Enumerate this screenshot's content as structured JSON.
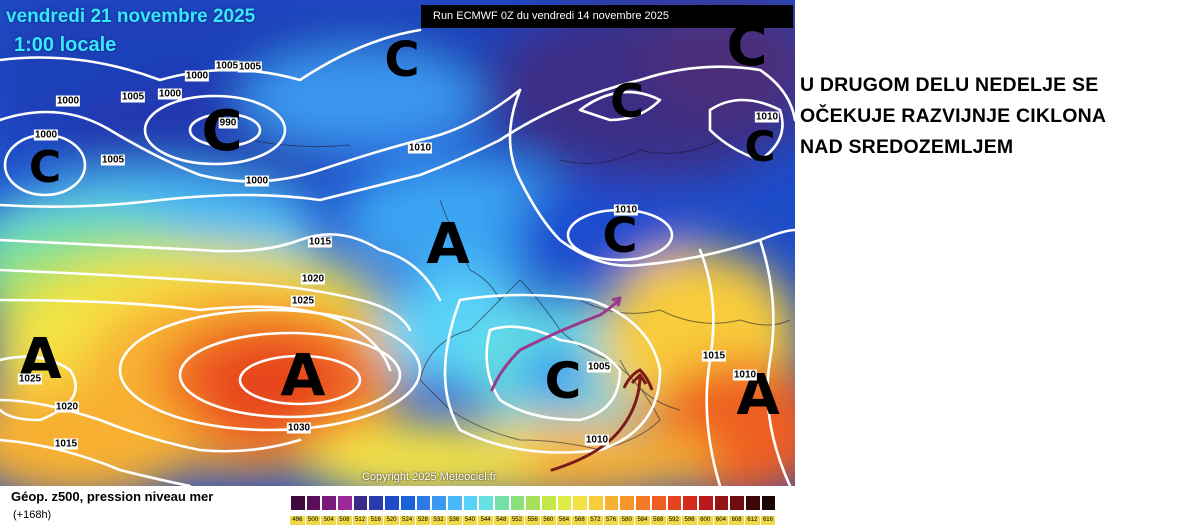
{
  "map": {
    "date_line": "vendredi 21 novembre 2025",
    "time_line": "1:00 locale",
    "run_info": "Run ECMWF 0Z du vendredi 14 novembre 2025",
    "copyright": "Copyright 2025 Meteociel.fr",
    "high_symbol": "A",
    "low_symbol": "C",
    "isobar_labels": [
      "1000",
      "1005",
      "1000",
      "1005",
      "1000",
      "1000",
      "1005",
      "990",
      "1005",
      "1000",
      "1010",
      "1015",
      "1020",
      "1025",
      "1030",
      "1025",
      "1020",
      "1015",
      "1010",
      "1010",
      "1005",
      "1010",
      "1015",
      "1010"
    ]
  },
  "caption": {
    "lines": [
      "U DRUGOM DELU NEDELJE SE",
      "OČEKUJE RAZVIJNJE CIKLONA",
      "NAD SREDOZEMLJEM"
    ]
  },
  "legend": {
    "title": "Géop. z500, pression niveau mer",
    "subtitle": "(+168h)",
    "values": [
      "496",
      "500",
      "504",
      "508",
      "512",
      "516",
      "520",
      "524",
      "528",
      "532",
      "536",
      "540",
      "544",
      "548",
      "552",
      "556",
      "560",
      "564",
      "568",
      "572",
      "576",
      "580",
      "584",
      "588",
      "592",
      "596",
      "600",
      "604",
      "608",
      "612",
      "616"
    ],
    "colors": [
      "#3d0a3d",
      "#5a0f5a",
      "#7a1a7a",
      "#9a2a9a",
      "#3a2a8a",
      "#2a3aaa",
      "#1e4cc8",
      "#1a62dc",
      "#2a7ae8",
      "#3a98f0",
      "#4ab8f6",
      "#5ad2f8",
      "#66e0e0",
      "#72e0a8",
      "#8ae07a",
      "#a6e05a",
      "#c4e84a",
      "#e0ec46",
      "#f4e244",
      "#f8cc3a",
      "#f8b032",
      "#f8962c",
      "#f47a26",
      "#ee5e22",
      "#e6421e",
      "#d42a1e",
      "#b81a1a",
      "#961414",
      "#6e0e0e",
      "#3e0808",
      "#1a0404"
    ]
  }
}
